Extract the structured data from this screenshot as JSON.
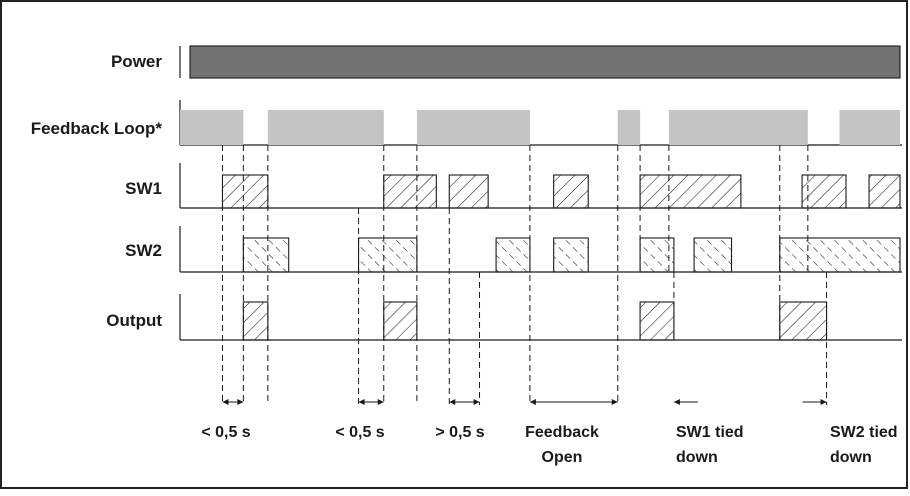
{
  "rows": [
    {
      "id": "power",
      "label": "Power",
      "kind": "solid",
      "segments": [
        [
          0,
          1
        ]
      ]
    },
    {
      "id": "feedback",
      "label": "Feedback Loop*",
      "kind": "gray",
      "segments": [
        [
          0,
          0.088
        ],
        [
          0.122,
          0.283
        ],
        [
          0.329,
          0.486
        ],
        [
          0.608,
          0.639
        ],
        [
          0.679,
          0.872
        ],
        [
          0.916,
          1
        ]
      ]
    },
    {
      "id": "sw1",
      "label": "SW1",
      "kind": "hatch",
      "segments": [
        [
          0.059,
          0.122
        ],
        [
          0.283,
          0.356
        ],
        [
          0.374,
          0.428
        ],
        [
          0.519,
          0.567
        ],
        [
          0.639,
          0.779
        ],
        [
          0.864,
          0.925
        ],
        [
          0.957,
          1
        ]
      ]
    },
    {
      "id": "sw2",
      "label": "SW2",
      "kind": "hatchdash",
      "segments": [
        [
          0.088,
          0.151
        ],
        [
          0.248,
          0.329
        ],
        [
          0.439,
          0.486
        ],
        [
          0.519,
          0.567
        ],
        [
          0.639,
          0.686
        ],
        [
          0.714,
          0.766
        ],
        [
          0.833,
          1
        ]
      ]
    },
    {
      "id": "output",
      "label": "Output",
      "kind": "hatch",
      "segments": [
        [
          0.088,
          0.122
        ],
        [
          0.283,
          0.329
        ],
        [
          0.639,
          0.686
        ],
        [
          0.833,
          0.898
        ]
      ]
    }
  ],
  "annotations": [
    {
      "lines": [
        "< 0,5 s"
      ]
    },
    {
      "lines": [
        "< 0,5 s"
      ]
    },
    {
      "lines": [
        "> 0,5 s"
      ]
    },
    {
      "lines": [
        "Feedback",
        "Open"
      ]
    },
    {
      "lines": [
        "SW1 tied",
        "down"
      ]
    },
    {
      "lines": [
        "SW2 tied",
        "down"
      ]
    }
  ],
  "colors": {
    "power_fill": "#737373",
    "feedback_fill": "#c4c4c4",
    "line": "#1a1a1a",
    "frame": "#222222"
  }
}
